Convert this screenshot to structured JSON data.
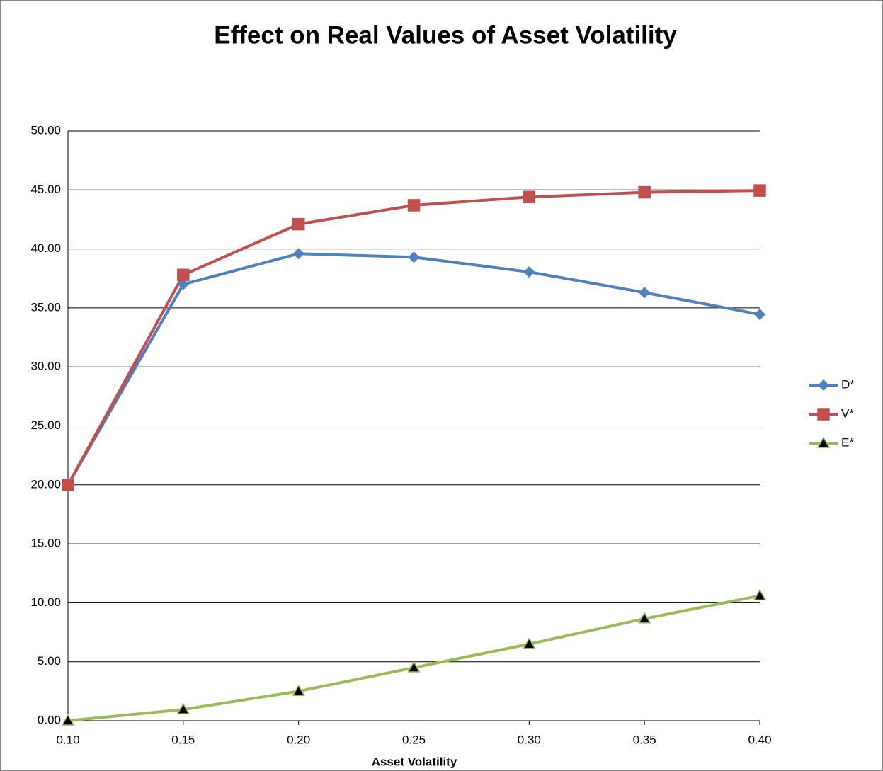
{
  "chart_data": {
    "type": "line",
    "title": "Effect on Real Values of Asset Volatility",
    "x_label": "Asset Volatility",
    "categories": [
      "0.10",
      "0.15",
      "0.20",
      "0.25",
      "0.30",
      "0.35",
      "0.40"
    ],
    "series": [
      {
        "name": "D*",
        "color": "#4f81bd",
        "marker": "diamond",
        "marker_fill": "#4f81bd",
        "values": [
          20.0,
          37.0,
          39.6,
          39.3,
          38.05,
          36.3,
          34.45
        ]
      },
      {
        "name": "V*",
        "color": "#c0504d",
        "marker": "square",
        "marker_fill": "#c0504d",
        "values": [
          20.0,
          37.8,
          42.1,
          43.7,
          44.4,
          44.8,
          44.95
        ]
      },
      {
        "name": "E*",
        "color": "#9bbb59",
        "marker": "triangle",
        "marker_fill": "#000000",
        "values": [
          0.0,
          0.95,
          2.5,
          4.5,
          6.5,
          8.65,
          10.6
        ]
      }
    ],
    "ylim": [
      0,
      50
    ],
    "yticks": [
      {
        "value": 0,
        "label": "0.00"
      },
      {
        "value": 5,
        "label": "5.00"
      },
      {
        "value": 10,
        "label": "10.00"
      },
      {
        "value": 15,
        "label": "15.00"
      },
      {
        "value": 20,
        "label": "20.00"
      },
      {
        "value": 25,
        "label": "25.00"
      },
      {
        "value": 30,
        "label": "30.00"
      },
      {
        "value": 35,
        "label": "35.00"
      },
      {
        "value": 40,
        "label": "40.00"
      },
      {
        "value": 45,
        "label": "45.00"
      },
      {
        "value": 50,
        "label": "50.00"
      }
    ],
    "grid": true,
    "legend": "right"
  }
}
